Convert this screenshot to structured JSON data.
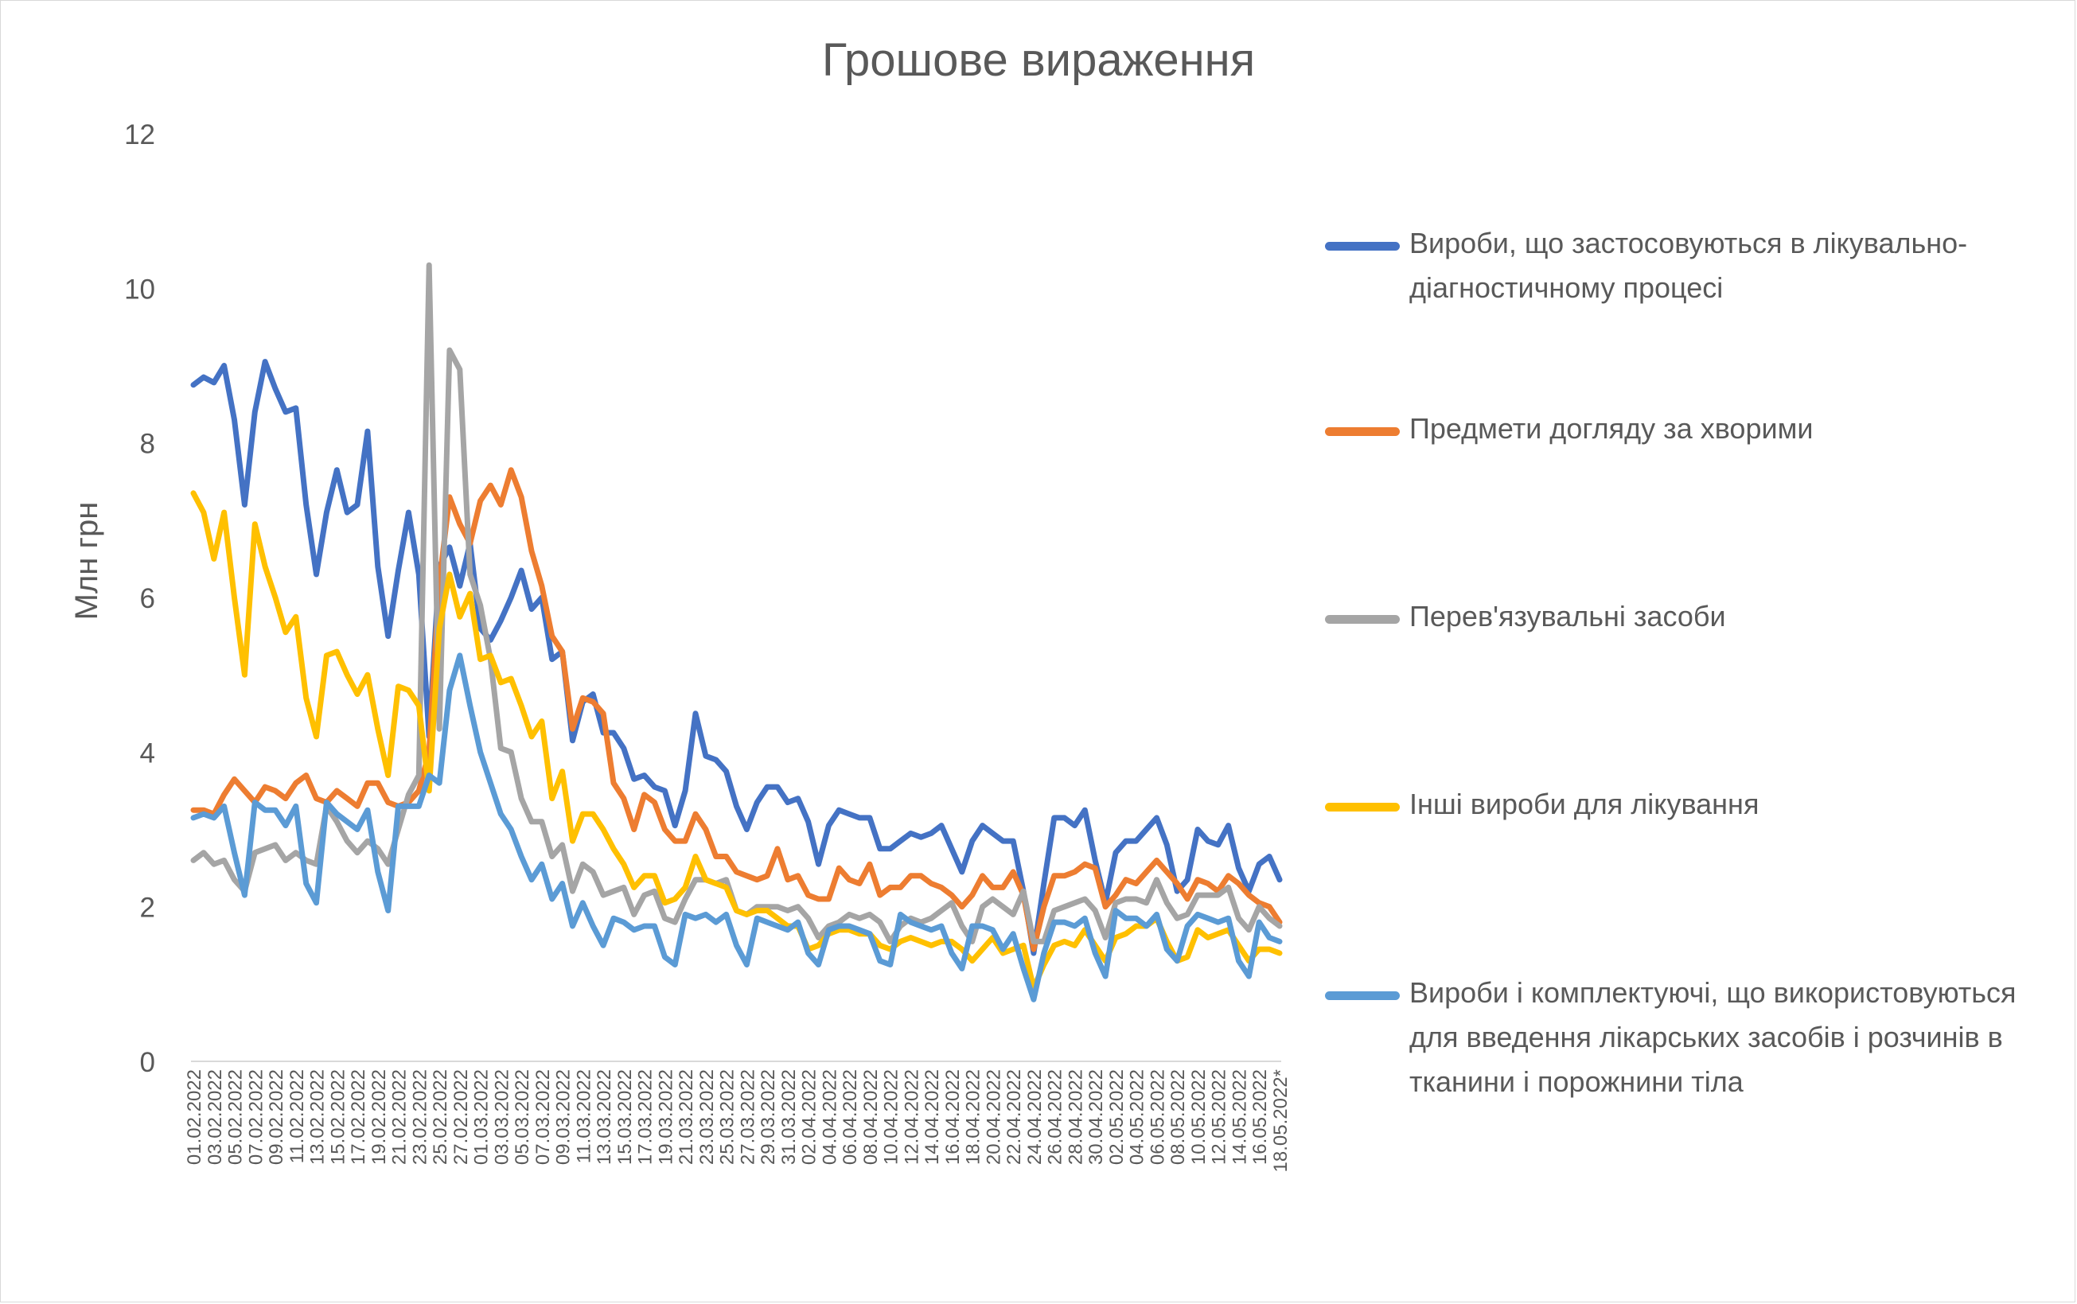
{
  "chart_data": {
    "type": "line",
    "title": "Грошове вираження",
    "ylabel": "Млн грн",
    "xlabel": "",
    "ylim": [
      0,
      12
    ],
    "yticks": [
      0,
      2,
      4,
      6,
      8,
      10,
      12
    ],
    "legend_position": "right",
    "grid": false,
    "x": [
      "01.02.2022",
      "02.02.2022",
      "03.02.2022",
      "04.02.2022",
      "05.02.2022",
      "06.02.2022",
      "07.02.2022",
      "08.02.2022",
      "09.02.2022",
      "10.02.2022",
      "11.02.2022",
      "12.02.2022",
      "13.02.2022",
      "14.02.2022",
      "15.02.2022",
      "16.02.2022",
      "17.02.2022",
      "18.02.2022",
      "19.02.2022",
      "20.02.2022",
      "21.02.2022",
      "22.02.2022",
      "23.02.2022",
      "24.02.2022",
      "25.02.2022",
      "26.02.2022",
      "27.02.2022",
      "28.02.2022",
      "01.03.2022",
      "02.03.2022",
      "03.03.2022",
      "04.03.2022",
      "05.03.2022",
      "06.03.2022",
      "07.03.2022",
      "08.03.2022",
      "09.03.2022",
      "10.03.2022",
      "11.03.2022",
      "12.03.2022",
      "13.03.2022",
      "14.03.2022",
      "15.03.2022",
      "16.03.2022",
      "17.03.2022",
      "18.03.2022",
      "19.03.2022",
      "20.03.2022",
      "21.03.2022",
      "22.03.2022",
      "23.03.2022",
      "24.03.2022",
      "25.03.2022",
      "26.03.2022",
      "27.03.2022",
      "28.03.2022",
      "29.03.2022",
      "30.03.2022",
      "31.03.2022",
      "01.04.2022",
      "02.04.2022",
      "03.04.2022",
      "04.04.2022",
      "05.04.2022",
      "06.04.2022",
      "07.04.2022",
      "08.04.2022",
      "09.04.2022",
      "10.04.2022",
      "11.04.2022",
      "12.04.2022",
      "13.04.2022",
      "14.04.2022",
      "15.04.2022",
      "16.04.2022",
      "17.04.2022",
      "18.04.2022",
      "19.04.2022",
      "20.04.2022",
      "21.04.2022",
      "22.04.2022",
      "23.04.2022",
      "24.04.2022",
      "25.04.2022",
      "26.04.2022",
      "27.04.2022",
      "28.04.2022",
      "29.04.2022",
      "30.04.2022",
      "01.05.2022",
      "02.05.2022",
      "03.05.2022",
      "04.05.2022",
      "05.05.2022",
      "06.05.2022",
      "07.05.2022",
      "08.05.2022",
      "09.05.2022",
      "10.05.2022",
      "11.05.2022",
      "12.05.2022",
      "13.05.2022",
      "14.05.2022",
      "15.05.2022",
      "16.05.2022",
      "17.05.2022",
      "18.05.2022*"
    ],
    "xtick_labels": [
      "01.02.2022",
      "03.02.2022",
      "05.02.2022",
      "07.02.2022",
      "09.02.2022",
      "11.02.2022",
      "13.02.2022",
      "15.02.2022",
      "17.02.2022",
      "19.02.2022",
      "21.02.2022",
      "23.02.2022",
      "25.02.2022",
      "27.02.2022",
      "01.03.2022",
      "03.03.2022",
      "05.03.2022",
      "07.03.2022",
      "09.03.2022",
      "11.03.2022",
      "13.03.2022",
      "15.03.2022",
      "17.03.2022",
      "19.03.2022",
      "21.03.2022",
      "23.03.2022",
      "25.03.2022",
      "27.03.2022",
      "29.03.2022",
      "31.03.2022",
      "02.04.2022",
      "04.04.2022",
      "06.04.2022",
      "08.04.2022",
      "10.04.2022",
      "12.04.2022",
      "14.04.2022",
      "16.04.2022",
      "18.04.2022",
      "20.04.2022",
      "22.04.2022",
      "24.04.2022",
      "26.04.2022",
      "28.04.2022",
      "30.04.2022",
      "02.05.2022",
      "04.05.2022",
      "06.05.2022",
      "08.05.2022",
      "10.05.2022",
      "12.05.2022",
      "14.05.2022",
      "16.05.2022",
      "18.05.2022*"
    ],
    "series": [
      {
        "name": "Вироби, що застосовуються в лікувально-діагностичному процесі",
        "color": "#4472c4",
        "values": [
          8.75,
          8.85,
          8.78,
          9.0,
          8.3,
          7.2,
          8.4,
          9.05,
          8.7,
          8.4,
          8.45,
          7.2,
          6.3,
          7.1,
          7.65,
          7.1,
          7.2,
          8.15,
          6.4,
          5.5,
          6.35,
          7.1,
          6.3,
          4.2,
          6.4,
          6.65,
          6.15,
          6.7,
          5.6,
          5.45,
          5.7,
          6.0,
          6.35,
          5.85,
          6.0,
          5.2,
          5.3,
          4.15,
          4.65,
          4.75,
          4.25,
          4.25,
          4.05,
          3.65,
          3.7,
          3.55,
          3.5,
          3.05,
          3.5,
          4.5,
          3.95,
          3.9,
          3.75,
          3.3,
          3.0,
          3.35,
          3.55,
          3.55,
          3.35,
          3.4,
          3.1,
          2.55,
          3.05,
          3.25,
          3.2,
          3.15,
          3.15,
          2.75,
          2.75,
          2.85,
          2.95,
          2.9,
          2.95,
          3.05,
          2.75,
          2.45,
          2.85,
          3.05,
          2.95,
          2.85,
          2.85,
          2.2,
          1.4,
          2.3,
          3.15,
          3.15,
          3.05,
          3.25,
          2.6,
          2.05,
          2.7,
          2.85,
          2.85,
          3.0,
          3.15,
          2.8,
          2.2,
          2.35,
          3.0,
          2.85,
          2.8,
          3.05,
          2.5,
          2.2,
          2.55,
          2.65,
          2.35
        ]
      },
      {
        "name": "Предмети догляду за хворими",
        "color": "#ed7d31",
        "values": [
          3.25,
          3.25,
          3.2,
          3.45,
          3.65,
          3.5,
          3.35,
          3.55,
          3.5,
          3.4,
          3.6,
          3.7,
          3.4,
          3.35,
          3.5,
          3.4,
          3.3,
          3.6,
          3.6,
          3.35,
          3.3,
          3.35,
          3.5,
          4.0,
          6.2,
          7.3,
          6.95,
          6.7,
          7.25,
          7.45,
          7.2,
          7.65,
          7.3,
          6.6,
          6.15,
          5.5,
          5.3,
          4.3,
          4.7,
          4.65,
          4.5,
          3.6,
          3.4,
          3.0,
          3.45,
          3.35,
          3.0,
          2.85,
          2.85,
          3.2,
          3.0,
          2.65,
          2.65,
          2.45,
          2.4,
          2.35,
          2.4,
          2.75,
          2.35,
          2.4,
          2.15,
          2.1,
          2.1,
          2.5,
          2.35,
          2.3,
          2.55,
          2.15,
          2.25,
          2.25,
          2.4,
          2.4,
          2.3,
          2.25,
          2.15,
          2.0,
          2.15,
          2.4,
          2.25,
          2.25,
          2.45,
          2.15,
          1.45,
          2.0,
          2.4,
          2.4,
          2.45,
          2.55,
          2.5,
          2.0,
          2.15,
          2.35,
          2.3,
          2.45,
          2.6,
          2.45,
          2.3,
          2.1,
          2.35,
          2.3,
          2.2,
          2.4,
          2.3,
          2.15,
          2.05,
          2.0,
          1.8
        ]
      },
      {
        "name": "Перев'язувальні засоби",
        "color": "#a5a5a5",
        "values": [
          2.6,
          2.7,
          2.55,
          2.6,
          2.35,
          2.2,
          2.7,
          2.75,
          2.8,
          2.6,
          2.7,
          2.6,
          2.55,
          3.3,
          3.1,
          2.85,
          2.7,
          2.85,
          2.75,
          2.55,
          3.0,
          3.45,
          3.7,
          10.3,
          4.3,
          9.2,
          8.95,
          6.3,
          5.9,
          5.2,
          4.05,
          4.0,
          3.4,
          3.1,
          3.1,
          2.65,
          2.8,
          2.2,
          2.55,
          2.45,
          2.15,
          2.2,
          2.25,
          1.9,
          2.15,
          2.2,
          1.85,
          1.8,
          2.1,
          2.35,
          2.35,
          2.3,
          2.35,
          1.95,
          1.9,
          2.0,
          2.0,
          2.0,
          1.95,
          2.0,
          1.85,
          1.6,
          1.75,
          1.8,
          1.9,
          1.85,
          1.9,
          1.8,
          1.55,
          1.75,
          1.85,
          1.8,
          1.85,
          1.95,
          2.05,
          1.75,
          1.55,
          2.0,
          2.1,
          2.0,
          1.9,
          2.2,
          1.55,
          1.55,
          1.95,
          2.0,
          2.05,
          2.1,
          1.95,
          1.6,
          2.05,
          2.1,
          2.1,
          2.05,
          2.35,
          2.05,
          1.85,
          1.9,
          2.15,
          2.15,
          2.15,
          2.25,
          1.85,
          1.7,
          2.0,
          1.85,
          1.75
        ]
      },
      {
        "name": "Інші вироби для лікування",
        "color": "#ffc000",
        "values": [
          7.35,
          7.1,
          6.5,
          7.1,
          6.0,
          5.0,
          6.95,
          6.4,
          6.0,
          5.55,
          5.75,
          4.7,
          4.2,
          5.25,
          5.3,
          5.0,
          4.75,
          5.0,
          4.3,
          3.7,
          4.85,
          4.8,
          4.6,
          3.5,
          5.6,
          6.3,
          5.75,
          6.05,
          5.2,
          5.25,
          4.9,
          4.95,
          4.6,
          4.2,
          4.4,
          3.4,
          3.75,
          2.85,
          3.2,
          3.2,
          3.0,
          2.75,
          2.55,
          2.25,
          2.4,
          2.4,
          2.05,
          2.1,
          2.25,
          2.65,
          2.35,
          2.3,
          2.25,
          1.95,
          1.9,
          1.95,
          1.95,
          1.85,
          1.75,
          1.75,
          1.45,
          1.5,
          1.65,
          1.7,
          1.7,
          1.65,
          1.65,
          1.5,
          1.45,
          1.55,
          1.6,
          1.55,
          1.5,
          1.55,
          1.55,
          1.45,
          1.3,
          1.45,
          1.6,
          1.4,
          1.45,
          1.5,
          0.95,
          1.25,
          1.5,
          1.55,
          1.5,
          1.7,
          1.5,
          1.3,
          1.6,
          1.65,
          1.75,
          1.75,
          1.85,
          1.55,
          1.3,
          1.35,
          1.7,
          1.6,
          1.65,
          1.7,
          1.5,
          1.3,
          1.45,
          1.45,
          1.4
        ]
      },
      {
        "name": "Вироби і комплектуючі, що використовуються для введення лікарських засобів і розчинів в тканини і порожнини тіла",
        "color": "#5b9bd5",
        "values": [
          3.15,
          3.2,
          3.15,
          3.3,
          2.7,
          2.15,
          3.35,
          3.25,
          3.25,
          3.05,
          3.3,
          2.3,
          2.05,
          3.35,
          3.2,
          3.1,
          3.0,
          3.25,
          2.45,
          1.95,
          3.3,
          3.3,
          3.3,
          3.7,
          3.6,
          4.8,
          5.25,
          4.6,
          4.0,
          3.6,
          3.2,
          3.0,
          2.65,
          2.35,
          2.55,
          2.1,
          2.3,
          1.75,
          2.05,
          1.75,
          1.5,
          1.85,
          1.8,
          1.7,
          1.75,
          1.75,
          1.35,
          1.25,
          1.9,
          1.85,
          1.9,
          1.8,
          1.9,
          1.5,
          1.25,
          1.85,
          1.8,
          1.75,
          1.7,
          1.8,
          1.4,
          1.25,
          1.7,
          1.75,
          1.75,
          1.7,
          1.65,
          1.3,
          1.25,
          1.9,
          1.8,
          1.75,
          1.7,
          1.75,
          1.4,
          1.2,
          1.75,
          1.75,
          1.7,
          1.45,
          1.65,
          1.2,
          0.8,
          1.4,
          1.8,
          1.8,
          1.75,
          1.85,
          1.4,
          1.1,
          1.95,
          1.85,
          1.85,
          1.75,
          1.9,
          1.45,
          1.3,
          1.75,
          1.9,
          1.85,
          1.8,
          1.85,
          1.3,
          1.1,
          1.8,
          1.6,
          1.55
        ]
      }
    ]
  }
}
